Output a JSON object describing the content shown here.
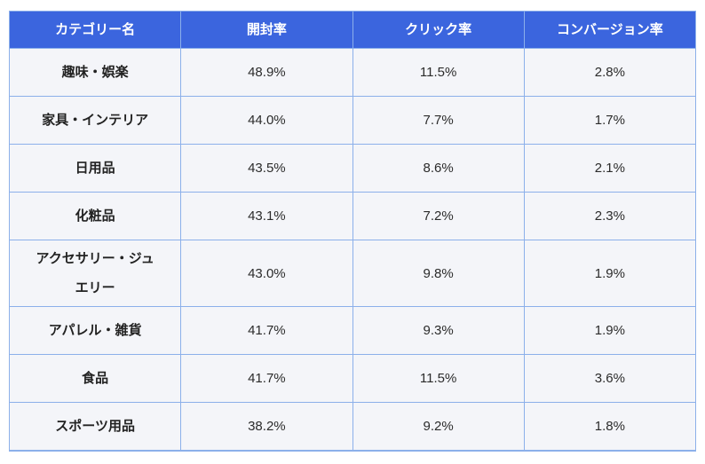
{
  "colors": {
    "header_bg": "#3b65de",
    "header_text": "#ffffff",
    "border": "#8cb0ea",
    "cell_bg": "#f4f5f9",
    "cell_text": "#2b2b2b"
  },
  "chart_data": {
    "type": "table",
    "columns": [
      "カテゴリー名",
      "開封率",
      "クリック率",
      "コンバージョン率"
    ],
    "rows": [
      [
        "趣味・娯楽",
        "48.9%",
        "11.5%",
        "2.8%"
      ],
      [
        "家具・インテリア",
        "44.0%",
        "7.7%",
        "1.7%"
      ],
      [
        "日用品",
        "43.5%",
        "8.6%",
        "2.1%"
      ],
      [
        "化粧品",
        "43.1%",
        "7.2%",
        "2.3%"
      ],
      [
        "アクセサリー・ジュエリー",
        "43.0%",
        "9.8%",
        "1.9%"
      ],
      [
        "アパレル・雑貨",
        "41.7%",
        "9.3%",
        "1.9%"
      ],
      [
        "食品",
        "41.7%",
        "11.5%",
        "3.6%"
      ],
      [
        "スポーツ用品",
        "38.2%",
        "9.2%",
        "1.8%"
      ]
    ]
  }
}
